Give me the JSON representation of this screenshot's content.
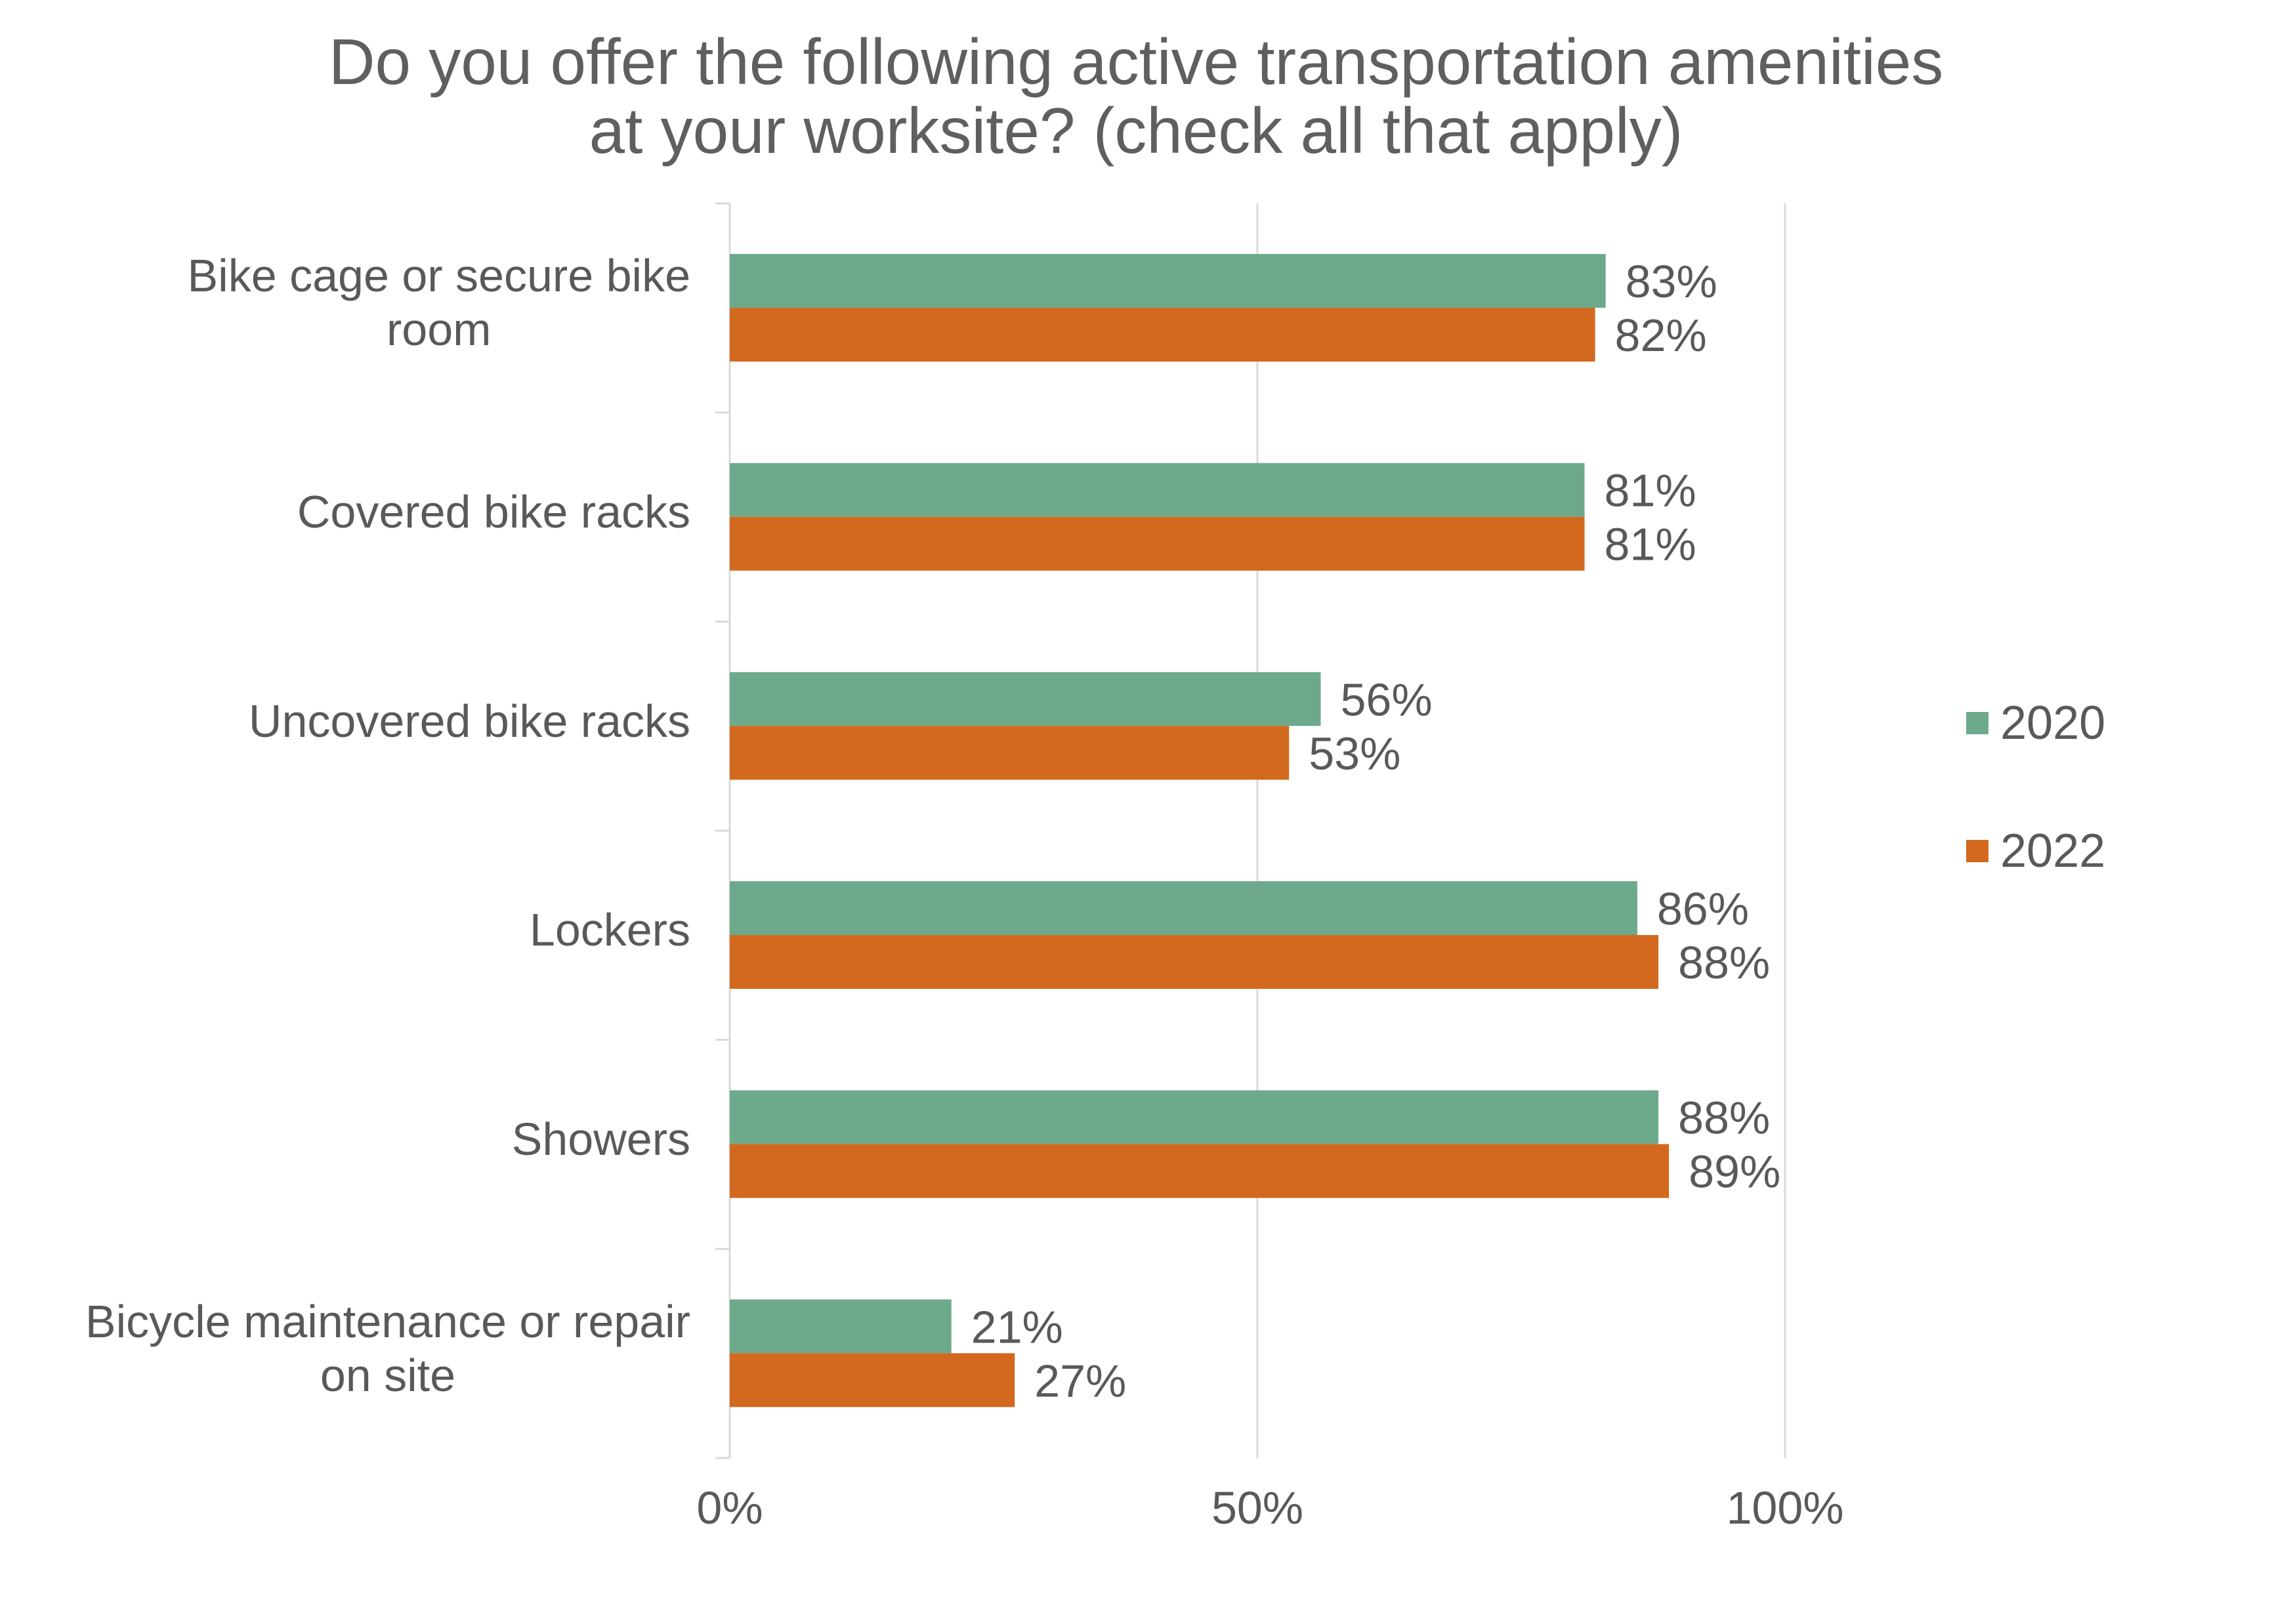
{
  "chart_data": {
    "type": "bar",
    "orientation": "horizontal",
    "title": "Do you offer the following active transportation amenities at your worksite? (check all that apply)",
    "title_lines": [
      "Do you offer the following active transportation amenities",
      "at your worksite? (check all that apply)"
    ],
    "categories": [
      "Bike cage or secure bike room",
      "Covered bike racks",
      "Uncovered bike racks",
      "Lockers",
      "Showers",
      "Bicycle maintenance or repair on site"
    ],
    "category_lines": [
      [
        "Bike cage or secure bike",
        "room"
      ],
      [
        "Covered bike racks"
      ],
      [
        "Uncovered bike racks"
      ],
      [
        "Lockers"
      ],
      [
        "Showers"
      ],
      [
        "Bicycle maintenance or repair",
        "on site"
      ]
    ],
    "series": [
      {
        "name": "2020",
        "color": "#6da98b",
        "values": [
          83,
          81,
          56,
          86,
          88,
          21
        ],
        "labels": [
          "83%",
          "81%",
          "56%",
          "86%",
          "88%",
          "21%"
        ]
      },
      {
        "name": "2022",
        "color": "#d2691e",
        "values": [
          82,
          81,
          53,
          88,
          89,
          27
        ],
        "labels": [
          "82%",
          "81%",
          "53%",
          "88%",
          "89%",
          "27%"
        ]
      }
    ],
    "xlim": [
      0,
      100
    ],
    "xticks": [
      0,
      50,
      100
    ],
    "xtick_labels": [
      "0%",
      "50%",
      "100%"
    ],
    "xlabel": "",
    "ylabel": "",
    "grid": "vertical",
    "legend_position": "right"
  }
}
